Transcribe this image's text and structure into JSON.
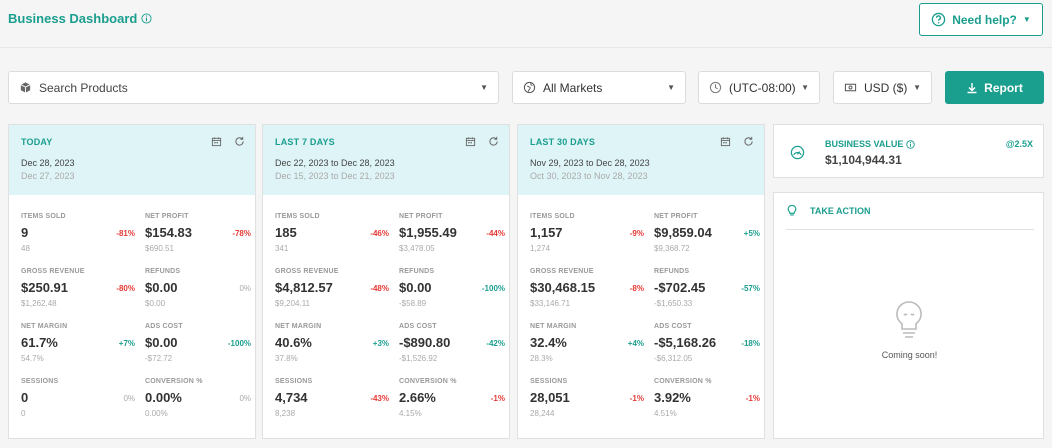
{
  "header": {
    "title": "Business Dashboard",
    "help_label": "Need help?"
  },
  "filters": {
    "search_placeholder": "Search Products",
    "market": "All Markets",
    "timezone": "(UTC-08:00)",
    "currency": "USD ($)",
    "report_label": "Report"
  },
  "cards": [
    {
      "title": "TODAY",
      "range": "Dec 28, 2023",
      "prev_range": "Dec 27, 2023",
      "metrics": [
        {
          "label": "ITEMS SOLD",
          "value": "9",
          "prev": "48",
          "change": "-81%",
          "trend": "red"
        },
        {
          "label": "NET PROFIT",
          "value": "$154.83",
          "prev": "$690.51",
          "change": "-78%",
          "trend": "red"
        },
        {
          "label": "GROSS REVENUE",
          "value": "$250.91",
          "prev": "$1,262.48",
          "change": "-80%",
          "trend": "red"
        },
        {
          "label": "REFUNDS",
          "value": "$0.00",
          "prev": "$0.00",
          "change": "0%",
          "trend": "gray"
        },
        {
          "label": "NET MARGIN",
          "value": "61.7%",
          "prev": "54.7%",
          "change": "+7%",
          "trend": "green"
        },
        {
          "label": "ADS COST",
          "value": "$0.00",
          "prev": "-$72.72",
          "change": "-100%",
          "trend": "green"
        },
        {
          "label": "SESSIONS",
          "value": "0",
          "prev": "0",
          "change": "0%",
          "trend": "gray"
        },
        {
          "label": "CONVERSION %",
          "value": "0.00%",
          "prev": "0.00%",
          "change": "0%",
          "trend": "gray"
        }
      ]
    },
    {
      "title": "LAST 7 DAYS",
      "range": "Dec 22, 2023 to Dec 28, 2023",
      "prev_range": "Dec 15, 2023 to Dec 21, 2023",
      "metrics": [
        {
          "label": "ITEMS SOLD",
          "value": "185",
          "prev": "341",
          "change": "-46%",
          "trend": "red"
        },
        {
          "label": "NET PROFIT",
          "value": "$1,955.49",
          "prev": "$3,478.05",
          "change": "-44%",
          "trend": "red"
        },
        {
          "label": "GROSS REVENUE",
          "value": "$4,812.57",
          "prev": "$9,204.11",
          "change": "-48%",
          "trend": "red"
        },
        {
          "label": "REFUNDS",
          "value": "$0.00",
          "prev": "-$58.89",
          "change": "-100%",
          "trend": "green"
        },
        {
          "label": "NET MARGIN",
          "value": "40.6%",
          "prev": "37.8%",
          "change": "+3%",
          "trend": "green"
        },
        {
          "label": "ADS COST",
          "value": "-$890.80",
          "prev": "-$1,526.92",
          "change": "-42%",
          "trend": "green"
        },
        {
          "label": "SESSIONS",
          "value": "4,734",
          "prev": "8,238",
          "change": "-43%",
          "trend": "red"
        },
        {
          "label": "CONVERSION %",
          "value": "2.66%",
          "prev": "4.15%",
          "change": "-1%",
          "trend": "red"
        }
      ]
    },
    {
      "title": "LAST 30 DAYS",
      "range": "Nov 29, 2023 to Dec 28, 2023",
      "prev_range": "Oct 30, 2023 to Nov 28, 2023",
      "metrics": [
        {
          "label": "ITEMS SOLD",
          "value": "1,157",
          "prev": "1,274",
          "change": "-9%",
          "trend": "red"
        },
        {
          "label": "NET PROFIT",
          "value": "$9,859.04",
          "prev": "$9,368.72",
          "change": "+5%",
          "trend": "green"
        },
        {
          "label": "GROSS REVENUE",
          "value": "$30,468.15",
          "prev": "$33,146.71",
          "change": "-8%",
          "trend": "red"
        },
        {
          "label": "REFUNDS",
          "value": "-$702.45",
          "prev": "-$1,650.33",
          "change": "-57%",
          "trend": "green"
        },
        {
          "label": "NET MARGIN",
          "value": "32.4%",
          "prev": "28.3%",
          "change": "+4%",
          "trend": "green"
        },
        {
          "label": "ADS COST",
          "value": "-$5,168.26",
          "prev": "-$6,312.05",
          "change": "-18%",
          "trend": "green"
        },
        {
          "label": "SESSIONS",
          "value": "28,051",
          "prev": "28,244",
          "change": "-1%",
          "trend": "red"
        },
        {
          "label": "CONVERSION %",
          "value": "3.92%",
          "prev": "4.51%",
          "change": "-1%",
          "trend": "red"
        }
      ]
    }
  ],
  "business_value": {
    "label": "BUSINESS VALUE",
    "value": "$1,104,944.31",
    "multiplier": "@2.5X"
  },
  "take_action": {
    "title": "TAKE ACTION",
    "empty_text": "Coming soon!"
  },
  "colors": {
    "accent": "#1a9e8e",
    "negative": "#e53935",
    "header_bg": "#dff4f7"
  },
  "icons": [
    "info-icon",
    "help-circle-icon",
    "box-icon",
    "globe-icon",
    "clock-icon",
    "money-icon",
    "download-icon",
    "calendar-icon",
    "refresh-icon",
    "gauge-icon",
    "lightbulb-icon"
  ]
}
